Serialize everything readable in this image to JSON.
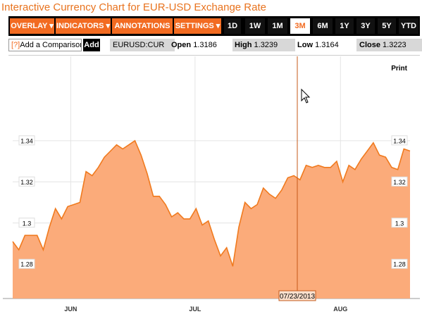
{
  "title": "Interactive Currency Chart for EUR-USD Exchange Rate",
  "toolbar": {
    "menus": [
      "OVERLAY ▾",
      "INDICATORS ▾",
      "ANNOTATIONS ▾",
      "SETTINGS ▾"
    ],
    "ranges": [
      "1D",
      "1W",
      "1M",
      "3M",
      "6M",
      "1Y",
      "3Y",
      "5Y",
      "YTD"
    ],
    "active_range": "3M"
  },
  "compare": {
    "help": "[?]",
    "label": "Add a Comparison",
    "add_label": "Add"
  },
  "quote": {
    "ticker": "EURUSD:CUR",
    "open_label": "Open",
    "open": "1.3186",
    "high_label": "High",
    "high": "1.3239",
    "low_label": "Low",
    "low": "1.3164",
    "close_label": "Close",
    "close": "1.3223"
  },
  "colors": {
    "accent": "#f26b21",
    "line": "#f07a1e",
    "fill": "#fbab7a",
    "crosshair": "#c65a1a"
  },
  "chart_data": {
    "type": "area",
    "print_label": "Print",
    "crosshair_date": "07/23/2013",
    "x_tick_labels": [
      "JUN",
      "JUL",
      "AUG"
    ],
    "y_ticks": [
      1.28,
      1.3,
      1.32,
      1.34
    ],
    "y_tick_labels": [
      "1.28",
      "1.3",
      "1.32",
      "1.34"
    ],
    "ylim": [
      1.264,
      1.381
    ],
    "grid": true,
    "series": [
      {
        "values": [
          1.291,
          1.287,
          1.294,
          1.294,
          1.294,
          1.287,
          1.298,
          1.307,
          1.302,
          1.308,
          1.309,
          1.31,
          1.325,
          1.323,
          1.327,
          1.332,
          1.335,
          1.338,
          1.336,
          1.338,
          1.34,
          1.333,
          1.324,
          1.313,
          1.313,
          1.309,
          1.303,
          1.305,
          1.302,
          1.302,
          1.307,
          1.299,
          1.301,
          1.292,
          1.284,
          1.288,
          1.279,
          1.298,
          1.31,
          1.307,
          1.309,
          1.317,
          1.314,
          1.312,
          1.316,
          1.322,
          1.323,
          1.321,
          1.328,
          1.327,
          1.328,
          1.327,
          1.327,
          1.33,
          1.32,
          1.328,
          1.326,
          1.331,
          1.335,
          1.339,
          1.333,
          1.332,
          1.327,
          1.326,
          1.336,
          1.335
        ]
      }
    ]
  }
}
